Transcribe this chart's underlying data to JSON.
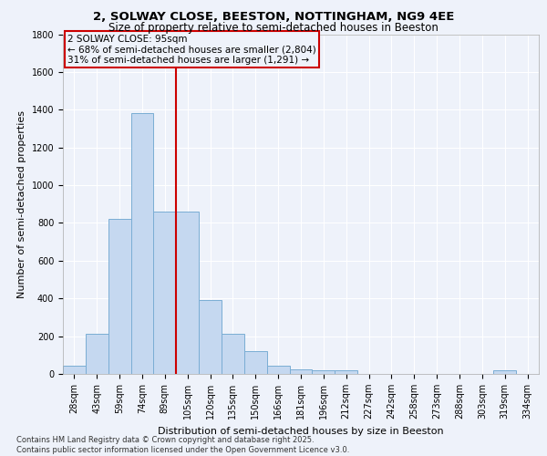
{
  "title_line1": "2, SOLWAY CLOSE, BEESTON, NOTTINGHAM, NG9 4EE",
  "title_line2": "Size of property relative to semi-detached houses in Beeston",
  "xlabel": "Distribution of semi-detached houses by size in Beeston",
  "ylabel": "Number of semi-detached properties",
  "categories": [
    "28sqm",
    "43sqm",
    "59sqm",
    "74sqm",
    "89sqm",
    "105sqm",
    "120sqm",
    "135sqm",
    "150sqm",
    "166sqm",
    "181sqm",
    "196sqm",
    "212sqm",
    "227sqm",
    "242sqm",
    "258sqm",
    "273sqm",
    "288sqm",
    "303sqm",
    "319sqm",
    "334sqm"
  ],
  "values": [
    45,
    215,
    820,
    1380,
    860,
    860,
    390,
    215,
    120,
    45,
    25,
    20,
    20,
    0,
    0,
    0,
    0,
    0,
    0,
    20,
    0
  ],
  "bar_color": "#c5d8f0",
  "bar_edge_color": "#7aadd4",
  "vline_color": "#cc0000",
  "annotation_title": "2 SOLWAY CLOSE: 95sqm",
  "annotation_line1": "← 68% of semi-detached houses are smaller (2,804)",
  "annotation_line2": "31% of semi-detached houses are larger (1,291) →",
  "annotation_box_color": "#cc0000",
  "ylim": [
    0,
    1800
  ],
  "yticks": [
    0,
    200,
    400,
    600,
    800,
    1000,
    1200,
    1400,
    1600,
    1800
  ],
  "footer_line1": "Contains HM Land Registry data © Crown copyright and database right 2025.",
  "footer_line2": "Contains public sector information licensed under the Open Government Licence v3.0.",
  "bg_color": "#eef2fa",
  "grid_color": "#ffffff",
  "title_fontsize": 9.5,
  "subtitle_fontsize": 8.5,
  "tick_fontsize": 7,
  "label_fontsize": 8,
  "annotation_fontsize": 7.5,
  "footer_fontsize": 6
}
